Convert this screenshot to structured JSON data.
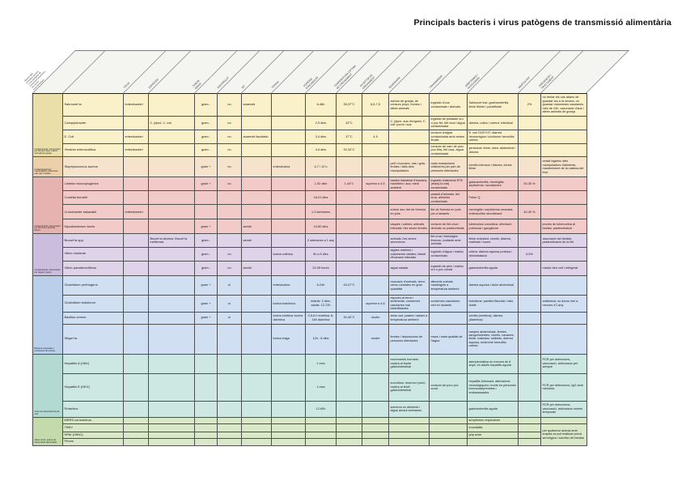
{
  "title": "Principals bacteris i virus patògens de transmissió alimentària",
  "corner_label": "Relació dels\nprincipals bacteris\ni virus patògens de\ntransmissió alimentària\ni les seves\ncaracterístiques",
  "layout": {
    "group_col_width": 37
  },
  "center_cols": [
    "gram",
    "esporulat",
    "incubacio",
    "temperatura",
    "ph",
    "mortalitat"
  ],
  "columns": [
    {
      "key": "organism",
      "label": "",
      "width": 75
    },
    {
      "key": "tipus",
      "label": "TIPUS",
      "width": 31
    },
    {
      "key": "especies",
      "label": "ESPÈCIES",
      "width": 57
    },
    {
      "key": "gram",
      "label": "TINCIÓ\nGRAM",
      "width": 28
    },
    {
      "key": "esporulat",
      "label": "ESPORULAT",
      "width": 30
    },
    {
      "key": "o2",
      "label": "O2",
      "width": 37
    },
    {
      "key": "toxina",
      "label": "TOXINA",
      "width": 42
    },
    {
      "key": "incubacio",
      "label": "PERÍODE\nD'INCUBACIÓ",
      "width": 38
    },
    {
      "key": "temperatura",
      "label": "TEMPERATURA ÒPTIMA\nDE CREIXEMENT",
      "width": 32
    },
    {
      "key": "ph",
      "label": "PH ÒPTIM DE\nCREIXEMENT",
      "width": 33
    },
    {
      "key": "reservori",
      "label": "RESERVORI",
      "width": 50
    },
    {
      "key": "transmissio",
      "label": "TRANSMISSIÓ",
      "width": 47
    },
    {
      "key": "simptomes",
      "label": "SÍMPTOMES I\nPATOLOGIES",
      "width": 63
    },
    {
      "key": "mortalitat",
      "label": "MORTALITAT",
      "width": 28
    },
    {
      "key": "prevencio",
      "label": "PREVENCIÓ I\nTRACTAMENT",
      "width": 57
    }
  ],
  "groups": [
    {
      "label": "Contaminació i transmissió per femtes d'aus i altres animals de granja",
      "color": "#faf0ca",
      "label_color": "#eadfa9"
    },
    {
      "label": "Contaminació per manipuladors d'aliments: pell, nas i ferides",
      "color": "#f6e3cb",
      "label_color": "#ecd0a9"
    },
    {
      "label": "Contaminació i transmissió per llet crua i derivats làctics",
      "color": "#f2cbc9",
      "label_color": "#e7b3b0"
    },
    {
      "label": "Contaminació i transmissió per aigua i marisc",
      "color": "#ded3e9",
      "label_color": "#cabdde"
    },
    {
      "label": "Bacteris esporulats i productors de toxines",
      "color": "#d0e0f2",
      "label_color": "#bacfe9"
    },
    {
      "label": "Virus de transmissió fecal-oral",
      "color": "#cde8e3",
      "label_color": "#b3dad2"
    },
    {
      "label": "Altres virus i prions de transmissió alimentària",
      "color": "#dae8ca",
      "label_color": "#c3daab"
    }
  ],
  "rows": [
    {
      "h": 28,
      "group": 0,
      "cells": {
        "organism": "Salmonel·la",
        "tipus": "enterobacteri",
        "gram": "gram -",
        "esporulat": "no",
        "o2": "anaerobi",
        "incubacio": "6-48h",
        "temperatura": "35-37°C",
        "ph": "6,5-7,5",
        "reservori": "aviram de granja, de consum propi, homes i altres animals",
        "transmissio": "ingestió d'ous contaminats i derivats",
        "simptomes": "Salmonel·losi: gastroenteritis, febre tifoide i paratifoide",
        "mortalitat": "2%",
        "prevencio": "no rentar els ous abans de guardar-los a la nevera, no guardar maioneses casolanes més de 24h, vacunació d'aus i altres animals de granja"
      }
    },
    {
      "h": 17,
      "group": 0,
      "cells": {
        "organism": "Campylobacter",
        "especies": "C. jejuni, C. coli",
        "gram": "gram -",
        "esporulat": "no",
        "incubacio": "2-5 dies",
        "temperatura": "42°C",
        "reservori": "C. jejuni: aus d'engreix; C. coli: porcs i aus",
        "transmissio": "ingestió de pollastre cru o poc fet, llet crua i aigua contaminada",
        "simptomes": "diarrea, còlics i cremor intestinal"
      }
    },
    {
      "h": 17,
      "group": 0,
      "cells": {
        "organism": "E. Coli",
        "tipus": "enterobacteri",
        "gram": "gram -",
        "esporulat": "no",
        "o2": "anaerobi facultatiu",
        "incubacio": "3-4 dies",
        "temperatura": "37°C",
        "ph": "4-9",
        "transmissio": "consum d'aigua contaminada amb restes fecals",
        "simptomes": "E. coli O157:H7: diarrea hemorràgica i síndrome hemolític urèmic"
      }
    },
    {
      "h": 16,
      "group": 0,
      "cells": {
        "organism": "Yersinia enterocolitica",
        "tipus": "enterobacteri",
        "gram": "gram -",
        "esporulat": "no",
        "incubacio": "4-6 dies",
        "temperatura": "32-34°C",
        "transmissio": "consum de carn de porc poc feta, llet crua, aigua contaminada",
        "simptomes": "yersiniosi: febre, dolor abdominal i diarrea"
      }
    },
    {
      "h": 25,
      "group": 1,
      "cells": {
        "organism": "Staphylococcus aureus",
        "gram": "gram +",
        "esporulat": "no",
        "toxina": "enterotoxina",
        "incubacio": "4-7 / 12 h",
        "reservori": "pell i mucoses, nas i gola, ferides i talls dels manipuladors",
        "transmissio": "mala manipulació d'aliments per part de persones infectades",
        "simptomes": "vòmits intensos i diarrea, sense febre",
        "prevencio": "rentat higiènic dels manipuladors d'aliments, manteniment de la cadena del fred"
      }
    },
    {
      "h": 17,
      "group": 2,
      "cells": {
        "organism": "Listeria monocytogenes",
        "gram": "gram +",
        "esporulat": "no",
        "incubacio": "1-92 dies",
        "temperatura": "1-44°C",
        "ph": "superior a 4,5",
        "reservori": "bacteri intestinal d'humans, mamífers i aus; medi ambient",
        "transmissio": "ingestió d'aliments RTE (ready to eat) contaminats",
        "simptomes": "gastroenteritis, meningitis, septicèmia i avortament",
        "mortalitat": "30-35 %"
      }
    },
    {
      "h": 17,
      "group": 2,
      "cells": {
        "organism": "Coxiella burnetii",
        "incubacio": "18-21 dies",
        "transmissio": "paràsit d'animals; llet crua, aliments contaminats",
        "simptomes": "Febre Q"
      }
    },
    {
      "h": 18,
      "group": 2,
      "cells": {
        "organism": "Cronobacter sakazakii",
        "tipus": "enterobacteri",
        "incubacio": "1-3 setmanes",
        "reservori": "entorn sec; llet de fórmula en pols",
        "transmissio": "llet de fórmula en pols per a lactants",
        "simptomes": "meningitis i septicèmia neonatal, enterocolitis necrotitzant",
        "mortalitat": "40-45 %"
      }
    },
    {
      "h": 18,
      "group": 2,
      "cells": {
        "organism": "Mycobacterium bovis",
        "gram": "gram +",
        "o2": "aerobi",
        "incubacio": "14-60 dies",
        "reservori": "vaques i cabres; animals infectats i les seves femtes",
        "transmissio": "consum de llet crua i derivats no pasteuritzats",
        "simptomes": "tuberculosi zoonòtica: afectació pulmonar i ganglionar",
        "prevencio": "proves de tuberculina al bestiar, pasteurització"
      }
    },
    {
      "h": 15,
      "group": 3,
      "cells": {
        "organism": "Brucel·la spp.",
        "especies": "Brucel·la abortus, Brucel·la melitensis",
        "gram": "gram -",
        "o2": "aerobi",
        "incubacio": "2 setmanes a 1 any",
        "reservori": "animals i les seves secrecions",
        "transmissio": "llet crua i formatges frescos; contacte amb animals",
        "simptomes": "febre ondulant, vòmits, diarrea, malestar i suors",
        "prevencio": "vacunació del bestiar, pasteurització de la llet"
      }
    },
    {
      "h": 17,
      "group": 3,
      "cells": {
        "organism": "Vibrio cholerae",
        "gram": "gram -",
        "esporulat": "no",
        "toxina": "toxina colèrica",
        "incubacio": "6h a 5 dies",
        "reservori": "aigües marines i costaneres càlides; intestí d'humans infectats",
        "transmissio": "ingestió d'aigua i marisc contaminats",
        "simptomes": "còlera: diarrea aquosa profusa i deshidratació",
        "mortalitat": "0,5%"
      }
    },
    {
      "h": 18,
      "group": 3,
      "cells": {
        "organism": "Vibrio parahemolíticus",
        "gram": "gram -",
        "esporulat": "no",
        "o2": "aerobi",
        "incubacio": "24-96 hores",
        "reservori": "aigua salada",
        "transmissio": "ingestió de peix i marisc cru o poc cuinat",
        "simptomes": "gastroenteritis aguda",
        "prevencio": "marisc ben cuit i refrigerat"
      }
    },
    {
      "h": 24,
      "group": 4,
      "cells": {
        "organism": "Clostridium perfringens",
        "gram": "gram +",
        "esporulat": "sí",
        "toxina": "enterotoxina",
        "incubacio": "6-24h",
        "temperatura": "43-47°C",
        "reservori": "mucoses d'animals, terra; carns cuinades en gran quantitat",
        "transmissio": "aliments cuinats mantinguts a temperatura ambient",
        "simptomes": "diarrea aquosa i dolor abdominal"
      }
    },
    {
      "h": 18,
      "group": 4,
      "cells": {
        "organism": "Clostridium botulinum",
        "gram": "gram +",
        "esporulat": "sí",
        "toxina": "toxina botulínica",
        "incubacio": "infants: 3 dies; adults: 12-72h",
        "ph": "superior a 4,6",
        "reservori": "espores al terra i sediments; conserves casolanes mal esterilitzades",
        "transmissio": "conserves casolanes; mel en lactants",
        "simptomes": "botulisme: paràlisi flàccida i visió doble",
        "prevencio": "antitoxina; no donar mel a menors d'1 any"
      }
    },
    {
      "h": 15,
      "group": 4,
      "cells": {
        "organism": "Bacillus cereus",
        "gram": "gram +",
        "esporulat": "sí",
        "toxina": "toxina emètica; toxina diarreica",
        "incubacio": "0,5-6 h emètica; 8-16h diarreica",
        "temperatura": "30-40°C",
        "ph": "neutre",
        "reservori": "arròs cuit, pastes i salses a temperatura ambient",
        "simptomes": "vòmits (emètica); diarrea (diarreica)"
      }
    },
    {
      "h": 37,
      "group": 4,
      "cells": {
        "organism": "Shigel·la",
        "toxina": "toxina shiga",
        "incubacio": "12h - 8 dies",
        "ph": "neutre",
        "reservori": "femtes i deposicions de persones infectades",
        "transmissio": "mans i mala qualitat de l'aigua",
        "simptomes": "rampes abdominals, femtes sanguinolentes, vòmits, nàusees, febre, malestar, calfreds, diarrea aquosa, síndrome hemolític urèmic"
      }
    },
    {
      "h": 24,
      "group": 5,
      "cells": {
        "organism": "Hepatitis A (HAV)",
        "incubacio": "1 mes",
        "reservori": "excrements humans; replica al tracte gastrointestinal",
        "simptomes": "asimptomàtica en menors de 6 anys; en adults hepatitis aguda",
        "prevencio": "PCR per deteccions, vacunació, anticossos per sempre"
      }
    },
    {
      "h": 34,
      "group": 5,
      "cells": {
        "organism": "Hepatitis E (HEV)",
        "incubacio": "1 mes",
        "reservori": "zoonòtica: reservori porcí; replica al teixit gastrointestinal",
        "transmissio": "consum de porc poc curat",
        "simptomes": "hepatitis fulminant, alteracions neurològiques i morts en persones immunodeprimides i embarassades",
        "prevencio": "PCR per deteccions, IgG amb memòria"
      }
    },
    {
      "h": 20,
      "group": 5,
      "cells": {
        "organism": "Rotavirus",
        "incubacio": "12-60h",
        "reservori": "sobreviu en aliments i aigua durant setmanes",
        "simptomes": "gastroenteritis aguda",
        "prevencio": "PCR per deteccions, vacunació, anticossos només temporals"
      }
    },
    {
      "h": 8,
      "group": 6,
      "cells": {
        "organism": "MERS coronavirus",
        "simptomes": "símptomes respiratoris"
      }
    },
    {
      "h": 10,
      "group": 6,
      "cells": {
        "organism": "TBEV",
        "simptomes": "encefalitis",
        "prevencio": "per qualsevol animal amb sospita es pot realitzar prova serològica i sacrifici del bestiar"
      }
    },
    {
      "h": 8,
      "group": 6,
      "cells": {
        "organism": "HPAI (H5N1)",
        "simptomes": "grip aviar",
        "prevencio": "@^"
      }
    },
    {
      "h": 9,
      "group": 6,
      "cells": {
        "organism": "Prions",
        "prevencio": "@^"
      }
    }
  ]
}
